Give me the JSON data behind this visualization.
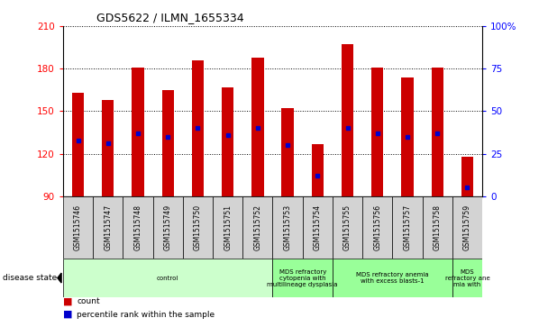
{
  "title": "GDS5622 / ILMN_1655334",
  "samples": [
    "GSM1515746",
    "GSM1515747",
    "GSM1515748",
    "GSM1515749",
    "GSM1515750",
    "GSM1515751",
    "GSM1515752",
    "GSM1515753",
    "GSM1515754",
    "GSM1515755",
    "GSM1515756",
    "GSM1515757",
    "GSM1515758",
    "GSM1515759"
  ],
  "count_values": [
    163,
    158,
    181,
    165,
    186,
    167,
    188,
    152,
    127,
    197,
    181,
    174,
    181,
    118
  ],
  "percentile_values": [
    33,
    31,
    37,
    35,
    40,
    36,
    40,
    30,
    12,
    40,
    37,
    35,
    37,
    5
  ],
  "ymin": 90,
  "ymax": 210,
  "yticks": [
    90,
    120,
    150,
    180,
    210
  ],
  "y2ticks": [
    0,
    25,
    50,
    75,
    100
  ],
  "bar_color": "#cc0000",
  "dot_color": "#0000cc",
  "bar_width": 0.4,
  "disease_groups": [
    {
      "label": "control",
      "start": 0,
      "end": 7,
      "color": "#ccffcc"
    },
    {
      "label": "MDS refractory\ncytopenia with\nmultilineage dysplasia",
      "start": 7,
      "end": 9,
      "color": "#99ff99"
    },
    {
      "label": "MDS refractory anemia\nwith excess blasts-1",
      "start": 9,
      "end": 13,
      "color": "#99ff99"
    },
    {
      "label": "MDS\nrefractory ane\nmia with",
      "start": 13,
      "end": 14,
      "color": "#99ff99"
    }
  ],
  "xlabel_disease": "disease state",
  "legend_count": "count",
  "legend_percentile": "percentile rank within the sample",
  "bg_color": "#ffffff"
}
